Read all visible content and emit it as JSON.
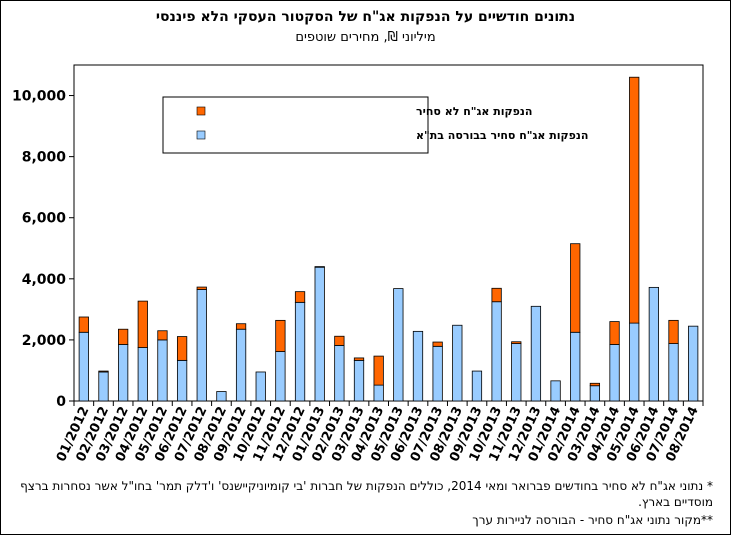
{
  "chart_data": {
    "type": "bar",
    "stacked": true,
    "title": "נתונים חודשיים על הנפקות אג\"ח של הסקטור העסקי הלא פיננסי",
    "subtitle": "מיליוני ₪, מחירים שוטפים",
    "ylim": [
      0,
      11000
    ],
    "yticks": [
      0,
      2000,
      4000,
      6000,
      8000,
      10000
    ],
    "ytick_labels": [
      "0",
      "2,000",
      "4,000",
      "6,000",
      "8,000",
      "10,000"
    ],
    "legend_position": "top-left",
    "grid": false,
    "categories": [
      "01/2012",
      "02/2012",
      "03/2012",
      "04/2012",
      "05/2012",
      "06/2012",
      "07/2012",
      "08/2012",
      "09/2012",
      "10/2012",
      "11/2012",
      "12/2012",
      "01/2013",
      "02/2013",
      "03/2013",
      "04/2013",
      "05/2013",
      "06/2013",
      "07/2013",
      "08/2013",
      "09/2013",
      "10/2013",
      "11/2013",
      "12/2013",
      "01/2014",
      "02/2014",
      "03/2014",
      "04/2014",
      "05/2014",
      "06/2014",
      "07/2014",
      "08/2014"
    ],
    "series": [
      {
        "name": "הנפקות אג\"ח סחיר בבורסה בת\"א",
        "color": "#99ccff",
        "values": [
          2250,
          950,
          1850,
          1750,
          2000,
          1330,
          3650,
          310,
          2350,
          950,
          1620,
          3230,
          4380,
          1820,
          1330,
          520,
          3680,
          2280,
          1790,
          2480,
          980,
          3250,
          1880,
          3100,
          660,
          2250,
          500,
          1850,
          2550,
          3720,
          1880,
          2450
        ]
      },
      {
        "name": "הנפקות אג\"ח לא סחיר",
        "color": "#ff6600",
        "values": [
          500,
          30,
          500,
          1520,
          300,
          780,
          80,
          0,
          180,
          0,
          1020,
          350,
          20,
          300,
          80,
          950,
          0,
          0,
          140,
          0,
          0,
          440,
          60,
          0,
          0,
          2900,
          80,
          750,
          8050,
          0,
          760,
          0
        ]
      }
    ]
  },
  "notes": {
    "note1": "* נתוני אג\"ח לא סחיר בחודשים פברואר ומאי 2014, כוללים הנפקות של חברות 'בי קומיוניקיישנס' ו'דלק תמר' בחו\"ל אשר נסחרות ברצף מוסדיים בארץ.",
    "note2": "**מקור נתוני אג\"ח סחיר - הבורסה לניירות ערך"
  }
}
